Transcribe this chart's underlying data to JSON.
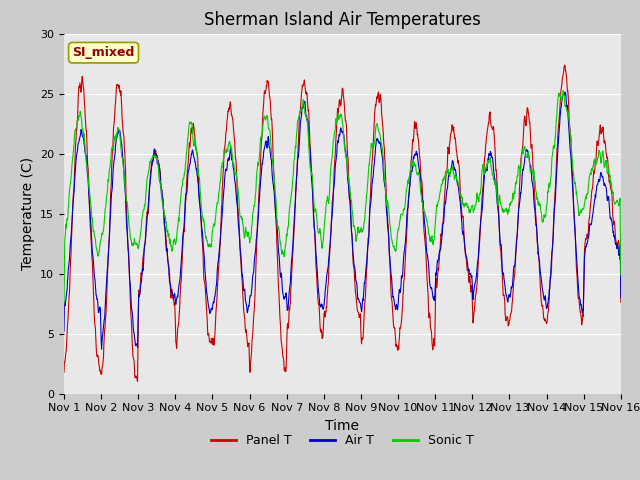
{
  "title": "Sherman Island Air Temperatures",
  "xlabel": "Time",
  "ylabel": "Temperature (C)",
  "ylim": [
    0,
    30
  ],
  "xlim": [
    0,
    15
  ],
  "xtick_labels": [
    "Nov 1",
    "Nov 2",
    "Nov 3",
    "Nov 4",
    "Nov 5",
    "Nov 6",
    "Nov 7",
    "Nov 8",
    "Nov 9",
    "Nov 10",
    "Nov 11",
    "Nov 12",
    "Nov 13",
    "Nov 14",
    "Nov 15",
    "Nov 16"
  ],
  "xtick_positions": [
    0,
    1,
    2,
    3,
    4,
    5,
    6,
    7,
    8,
    9,
    10,
    11,
    12,
    13,
    14,
    15
  ],
  "legend_entries": [
    "Panel T",
    "Air T",
    "Sonic T"
  ],
  "annotation_text": "SI_mixed",
  "annotation_color": "#990000",
  "annotation_bg": "#ffffcc",
  "annotation_edge": "#999900",
  "fig_bg_color": "#cccccc",
  "plot_bg_color": "#e8e8e8",
  "panel_color": "#cc0000",
  "air_color": "#0000cc",
  "sonic_color": "#00cc00",
  "grid_color": "#ffffff",
  "title_fontsize": 12,
  "tick_fontsize": 8,
  "axis_label_fontsize": 10,
  "legend_fontsize": 9
}
